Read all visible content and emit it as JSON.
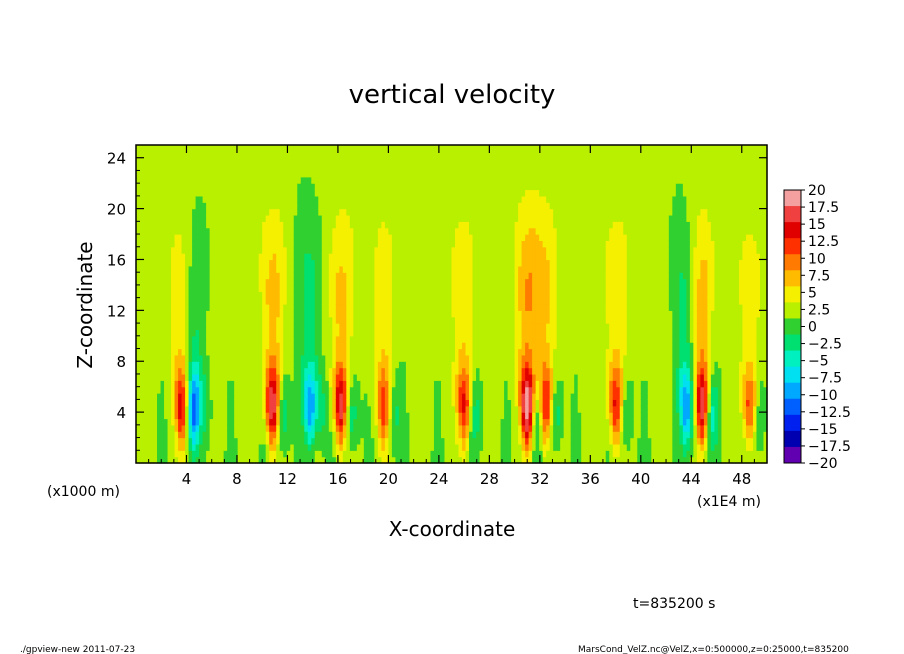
{
  "chart_data": {
    "type": "heatmap",
    "title": "vertical velocity",
    "xlabel": "X-coordinate",
    "ylabel": "Z-coordinate",
    "x_unit_label": "(x1E4 m)",
    "y_unit_label": "(x1000 m)",
    "xlim": [
      0,
      50
    ],
    "ylim": [
      0,
      25
    ],
    "x_ticks": [
      4,
      8,
      12,
      16,
      20,
      24,
      28,
      32,
      36,
      40,
      44,
      48
    ],
    "y_ticks": [
      4,
      8,
      12,
      16,
      20,
      24
    ],
    "x_tick_labels": [
      "4",
      "8",
      "12",
      "16",
      "20",
      "24",
      "28",
      "32",
      "36",
      "40",
      "44",
      "48"
    ],
    "y_tick_labels": [
      "4",
      "8",
      "12",
      "16",
      "20",
      "24"
    ],
    "colorbar": {
      "levels": [
        20,
        17.5,
        15,
        12.5,
        10,
        7.5,
        5,
        2.5,
        0,
        -2.5,
        -5,
        -7.5,
        -10,
        -12.5,
        -15,
        -17.5,
        -20
      ],
      "level_labels": [
        "20",
        "17.5",
        "15",
        "12.5",
        "10",
        "7.5",
        "5",
        "2.5",
        "0",
        "−2.5",
        "−5",
        "−7.5",
        "−10",
        "−12.5",
        "−15",
        "−17.5",
        "−20"
      ],
      "colors": [
        "#f5a0a0",
        "#f04040",
        "#e00000",
        "#ff3000",
        "#ff7a00",
        "#ffbb00",
        "#f5f000",
        "#b8f000",
        "#30d030",
        "#00e070",
        "#00f0c0",
        "#00e0f0",
        "#00a8ff",
        "#0060ff",
        "#0020f0",
        "#0000b0",
        "#6000b0"
      ]
    },
    "features": [
      {
        "x": 3.6,
        "peak": 12
      },
      {
        "x": 4.6,
        "peak": -10
      },
      {
        "x": 10.8,
        "peak": 16
      },
      {
        "x": 13.8,
        "peak": -12
      },
      {
        "x": 16.2,
        "peak": 15
      },
      {
        "x": 19.6,
        "peak": 10
      },
      {
        "x": 26.0,
        "peak": 12
      },
      {
        "x": 31.0,
        "peak": 18
      },
      {
        "x": 32.4,
        "peak": 14
      },
      {
        "x": 38.0,
        "peak": 12
      },
      {
        "x": 43.6,
        "peak": -12
      },
      {
        "x": 44.8,
        "peak": 18
      },
      {
        "x": 48.6,
        "peak": 10
      }
    ]
  },
  "annotations": {
    "time_label": "t=835200 s",
    "footer_left": "./gpview-new   2011-07-23",
    "footer_right": "MarsCond_VelZ.nc@VelZ,x=0:500000,z=0:25000,t=835200"
  }
}
